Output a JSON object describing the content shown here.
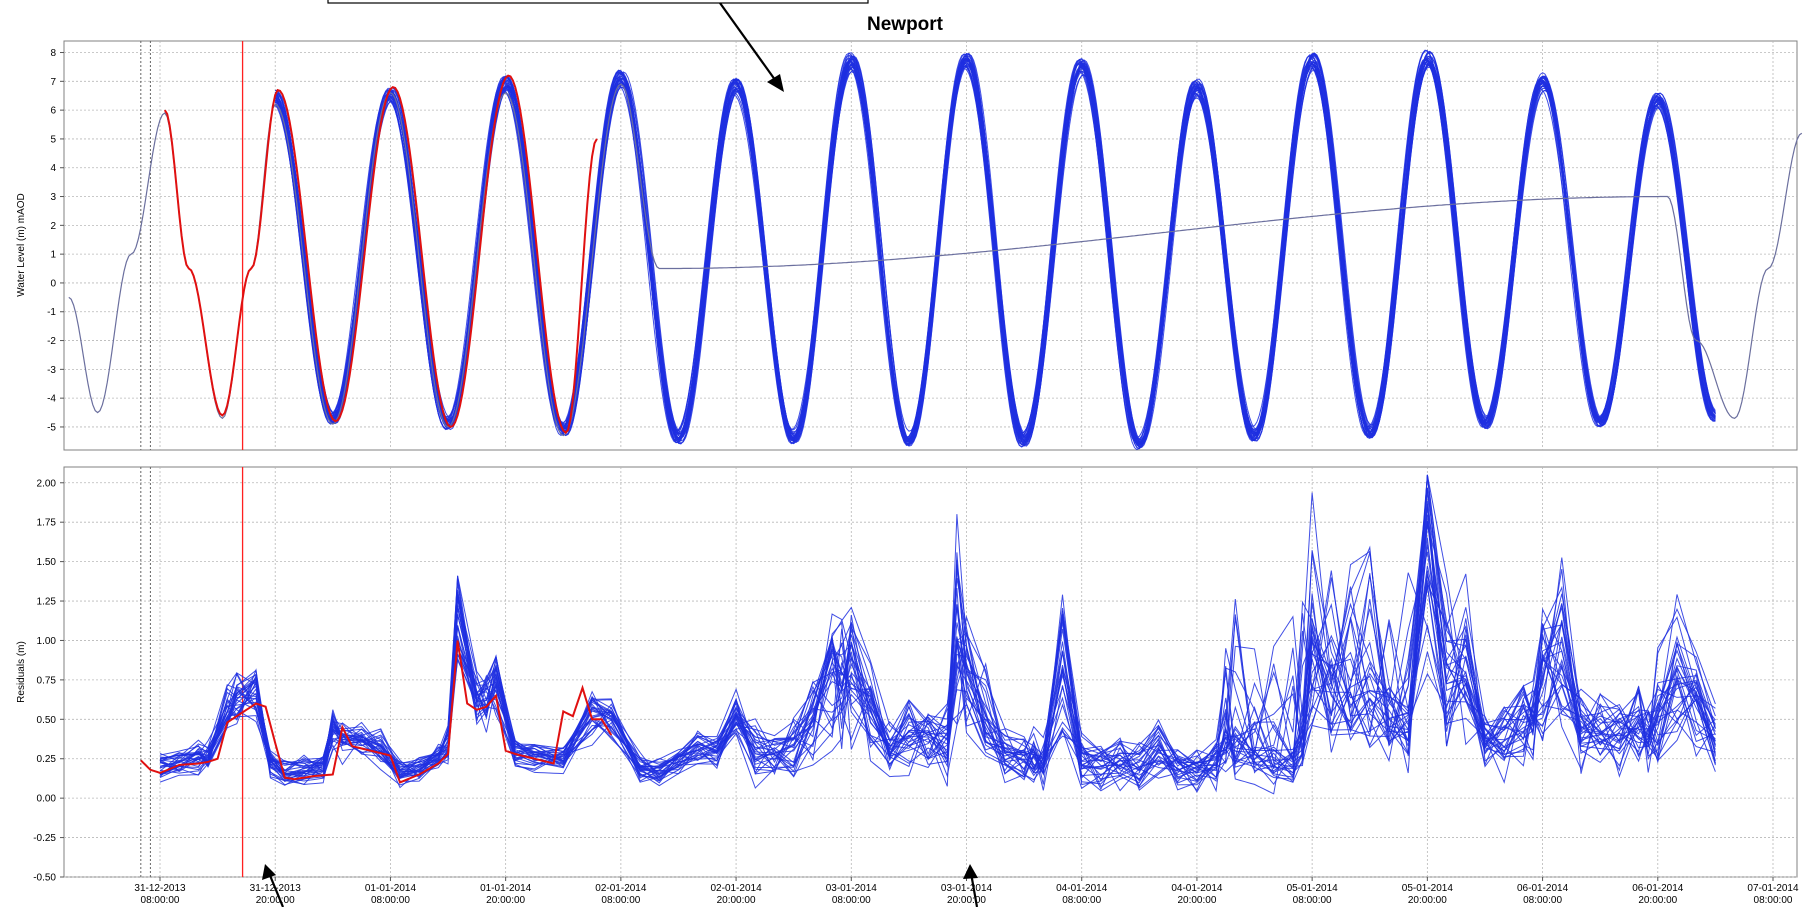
{
  "figure": {
    "title": "Newport"
  },
  "x_ticks": [
    {
      "date": "31-12-2013",
      "time": "08:00:00",
      "hour": 0
    },
    {
      "date": "31-12-2013",
      "time": "20:00:00",
      "hour": 12
    },
    {
      "date": "01-01-2014",
      "time": "08:00:00",
      "hour": 24
    },
    {
      "date": "01-01-2014",
      "time": "20:00:00",
      "hour": 36
    },
    {
      "date": "02-01-2014",
      "time": "08:00:00",
      "hour": 48
    },
    {
      "date": "02-01-2014",
      "time": "20:00:00",
      "hour": 60
    },
    {
      "date": "03-01-2014",
      "time": "08:00:00",
      "hour": 72
    },
    {
      "date": "03-01-2014",
      "time": "20:00:00",
      "hour": 84
    },
    {
      "date": "04-01-2014",
      "time": "08:00:00",
      "hour": 96
    },
    {
      "date": "04-01-2014",
      "time": "20:00:00",
      "hour": 108
    },
    {
      "date": "05-01-2014",
      "time": "08:00:00",
      "hour": 120
    },
    {
      "date": "05-01-2014",
      "time": "20:00:00",
      "hour": 132
    },
    {
      "date": "06-01-2014",
      "time": "08:00:00",
      "hour": 144
    },
    {
      "date": "06-01-2014",
      "time": "20:00:00",
      "hour": 156
    },
    {
      "date": "07-01-2014",
      "time": "08:00:00",
      "hour": 168
    }
  ],
  "chart_data": [
    {
      "type": "line",
      "title": "Newport",
      "ylabel": "Water Level (m)  mAOD",
      "ylim": [
        -5.8,
        8.4
      ],
      "yticks": [
        "-5",
        "-4",
        "-3",
        "-2",
        "-1",
        "0",
        "1",
        "2",
        "3",
        "4",
        "5",
        "6",
        "7",
        "8"
      ],
      "grid": true,
      "series": [
        {
          "role": "ensemble",
          "color": "#1f2fe0",
          "members": 30,
          "x": [
            12,
            18,
            24,
            30,
            36,
            42,
            48,
            54,
            60,
            66,
            72,
            78,
            84,
            90,
            96,
            102,
            108,
            114,
            120,
            126,
            132,
            138,
            144,
            150,
            156,
            162
          ],
          "y": [
            6.7,
            -4.9,
            6.8,
            -5.1,
            7.2,
            -5.3,
            7.4,
            -5.6,
            7.1,
            -5.6,
            8.0,
            -5.7,
            8.0,
            -5.7,
            7.8,
            -5.8,
            7.1,
            -5.5,
            8.0,
            -5.4,
            8.1,
            -5.1,
            7.3,
            -5.0,
            6.6,
            -4.8
          ]
        },
        {
          "role": "tidal",
          "color": "#6b6f9e",
          "x": [
            -9.5,
            -6.5,
            -3,
            0.5,
            3,
            6.5,
            9.5,
            12,
            18,
            24,
            30,
            36,
            42,
            48,
            52,
            157,
            160,
            164,
            167.5,
            171
          ],
          "y": [
            -0.5,
            -4.5,
            1.0,
            5.9,
            0.5,
            -4.7,
            0.5,
            6.2,
            -4.9,
            6.6,
            -5.0,
            6.6,
            -5.3,
            6.9,
            0.5,
            3.0,
            -2.0,
            -4.7,
            0.5,
            5.2
          ]
        },
        {
          "role": "observed",
          "color": "#e01010",
          "x": [
            0.5,
            3,
            6.5,
            9.5,
            12.3,
            18.3,
            24.3,
            30.3,
            36.3,
            42.3,
            45.5
          ],
          "y": [
            6.0,
            0.5,
            -4.6,
            0.5,
            6.7,
            -4.8,
            6.8,
            -5.0,
            7.2,
            -5.2,
            5.0
          ]
        }
      ],
      "markers": [
        {
          "x": -2.0,
          "style": "dotted",
          "color": "#666666"
        },
        {
          "x": -1.0,
          "style": "dotted",
          "color": "#666666"
        },
        {
          "x": 8.6,
          "style": "solid",
          "color": "#ff2020"
        }
      ]
    },
    {
      "type": "line",
      "ylabel": "Residuals (m)",
      "ylim": [
        -0.5,
        2.1
      ],
      "yticks": [
        "-0.50",
        "-0.25",
        "0.00",
        "0.25",
        "0.50",
        "0.75",
        "1.00",
        "1.25",
        "1.50",
        "1.75",
        "2.00"
      ],
      "grid": true,
      "series": [
        {
          "role": "ensemble",
          "color": "#1f2fe0",
          "members": 30,
          "x": [
            0,
            2,
            4,
            5,
            7,
            8,
            10,
            11.5,
            13,
            15,
            17,
            18,
            19,
            21,
            23,
            25,
            27,
            29,
            30,
            31,
            33,
            34,
            35,
            37,
            39,
            42,
            45,
            47,
            50,
            52,
            54,
            56,
            58,
            60,
            62,
            64,
            66,
            68,
            70,
            71,
            72,
            74,
            76,
            78,
            80,
            82,
            83,
            84,
            86,
            88,
            90,
            91,
            92,
            94,
            96,
            98,
            100,
            102,
            104,
            106,
            108,
            110,
            111,
            112,
            114,
            116,
            118,
            119,
            120,
            122,
            124,
            126,
            128,
            130,
            132,
            134,
            136,
            138,
            140,
            142,
            143,
            144,
            146,
            148,
            150,
            152,
            154,
            155,
            156,
            158,
            160,
            162
          ],
          "y": [
            0.18,
            0.21,
            0.23,
            0.25,
            0.55,
            0.62,
            0.65,
            0.2,
            0.15,
            0.16,
            0.18,
            0.42,
            0.38,
            0.36,
            0.3,
            0.15,
            0.18,
            0.25,
            0.35,
            1.1,
            0.62,
            0.6,
            0.72,
            0.28,
            0.25,
            0.24,
            0.52,
            0.5,
            0.18,
            0.15,
            0.22,
            0.3,
            0.28,
            0.5,
            0.28,
            0.26,
            0.3,
            0.48,
            0.8,
            0.7,
            0.75,
            0.55,
            0.3,
            0.4,
            0.38,
            0.35,
            1.1,
            0.78,
            0.55,
            0.25,
            0.22,
            0.24,
            0.2,
            0.85,
            0.22,
            0.2,
            0.22,
            0.18,
            0.3,
            0.2,
            0.18,
            0.2,
            0.35,
            0.3,
            0.25,
            0.2,
            0.22,
            0.35,
            0.8,
            0.6,
            0.55,
            0.6,
            0.5,
            0.45,
            1.5,
            0.65,
            0.9,
            0.35,
            0.35,
            0.45,
            0.5,
            0.75,
            0.9,
            0.45,
            0.4,
            0.38,
            0.45,
            0.4,
            0.55,
            0.75,
            0.6,
            0.35
          ]
        },
        {
          "role": "observed",
          "color": "#e01010",
          "x": [
            -2,
            -1,
            0,
            2,
            4,
            5,
            6,
            7,
            9,
            10,
            11,
            12,
            13,
            14,
            16,
            18,
            19,
            20,
            22,
            24,
            25,
            27,
            29,
            30,
            31,
            32,
            33,
            34,
            35,
            36,
            37,
            39,
            41,
            42,
            43,
            44,
            45,
            46,
            47
          ],
          "y": [
            0.24,
            0.18,
            0.16,
            0.21,
            0.22,
            0.23,
            0.25,
            0.48,
            0.56,
            0.6,
            0.58,
            0.35,
            0.13,
            0.12,
            0.14,
            0.15,
            0.45,
            0.33,
            0.3,
            0.27,
            0.1,
            0.15,
            0.22,
            0.28,
            1.0,
            0.6,
            0.56,
            0.58,
            0.65,
            0.3,
            0.28,
            0.25,
            0.22,
            0.55,
            0.52,
            0.7,
            0.5,
            0.5,
            0.4
          ]
        }
      ],
      "markers": [
        {
          "x": -2.0,
          "style": "dotted",
          "color": "#666666"
        },
        {
          "x": -1.0,
          "style": "dotted",
          "color": "#666666"
        },
        {
          "x": 8.6,
          "style": "solid",
          "color": "#ff2020"
        }
      ]
    }
  ]
}
